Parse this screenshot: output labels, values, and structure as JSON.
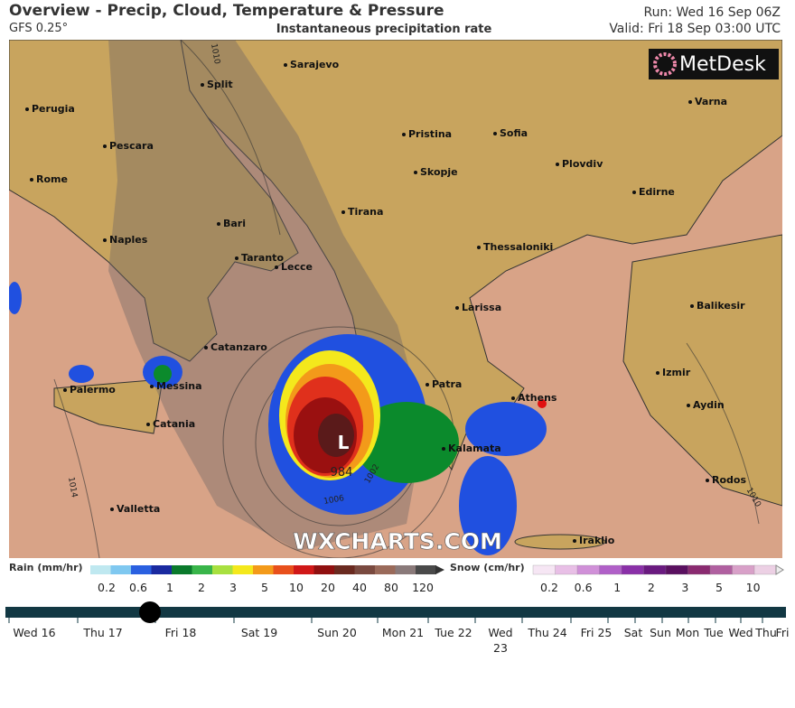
{
  "header": {
    "title": "Overview - Precip, Cloud, Temperature & Pressure",
    "model": "GFS 0.25°",
    "subtitle": "Instantaneous precipitation rate",
    "run": "Run: Wed 16 Sep 06Z",
    "valid": "Valid: Fri 18 Sep 03:00 UTC"
  },
  "logo": "MetDesk",
  "watermark": "WXCHARTS.COM",
  "map": {
    "cities": [
      "Sarajevo",
      "Split",
      "Perugia",
      "Pescara",
      "Pristina",
      "Sofia",
      "Varna",
      "Rome",
      "Skopje",
      "Plovdiv",
      "Edirne",
      "Bari",
      "Tirana",
      "Naples",
      "Thessaloniki",
      "Taranto",
      "Lecce",
      "Larissa",
      "Balikesir",
      "Catanzaro",
      "Izmir",
      "Palermo",
      "Messina",
      "Patra",
      "Athens",
      "Aydin",
      "Catania",
      "Kalamata",
      "Rodos",
      "Valletta",
      "Iraklio"
    ],
    "pressure_labels": [
      "1010",
      "1014",
      "1010",
      "1006",
      "1002",
      "984",
      "L"
    ]
  },
  "legend": {
    "rain": {
      "title": "Rain (mm/hr)",
      "ticks": [
        "0.2",
        "0.6",
        "1",
        "2",
        "3",
        "5",
        "10",
        "20",
        "40",
        "80",
        "120"
      ]
    },
    "snow": {
      "title": "Snow (cm/hr)",
      "ticks": [
        "0.2",
        "0.6",
        "1",
        "2",
        "3",
        "5",
        "10"
      ]
    }
  },
  "timeline": [
    "Wed 16",
    "Thu 17",
    "Fri 18",
    "Sat 19",
    "Sun 20",
    "Mon 21",
    "Tue 22",
    "Wed 23",
    "Thu 24",
    "Fri 25",
    "Sat",
    "Sun",
    "Mon",
    "Tue",
    "Wed",
    "Thu",
    "Fri"
  ]
}
